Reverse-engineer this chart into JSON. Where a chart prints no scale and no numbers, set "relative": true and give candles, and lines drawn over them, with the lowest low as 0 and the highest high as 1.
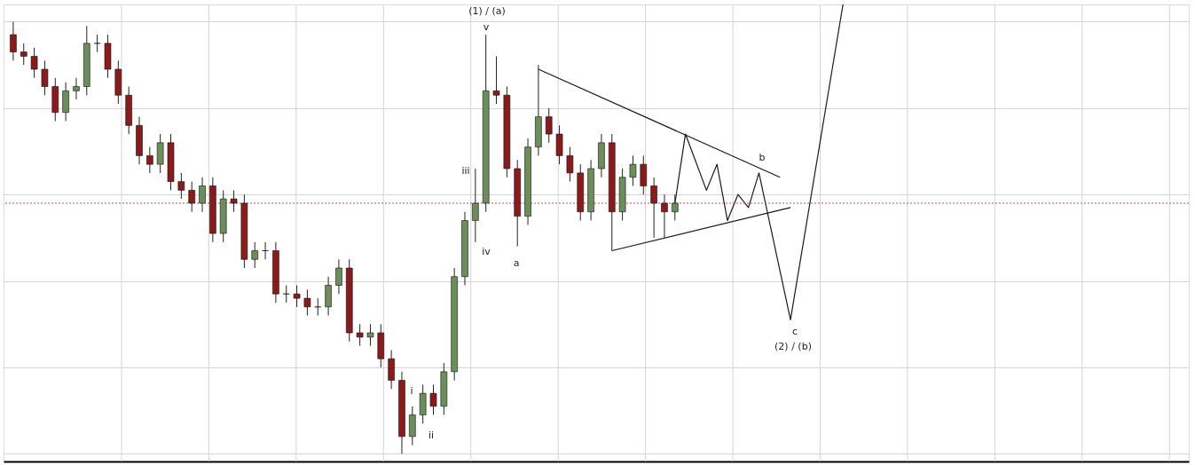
{
  "chart_data": {
    "type": "candlestick",
    "relative": true,
    "tick_labels": false,
    "grid": true,
    "categories": [
      null,
      null,
      null,
      null,
      null,
      null,
      null,
      null,
      null,
      null,
      null,
      null,
      null,
      null,
      null,
      null,
      null,
      null,
      null,
      null,
      null,
      null,
      null,
      null,
      null,
      null,
      null,
      null,
      null,
      null,
      null,
      null,
      null,
      null,
      null,
      null,
      null,
      null,
      null,
      null,
      null,
      null,
      null,
      null,
      null,
      null,
      null,
      null,
      null,
      null,
      null,
      null,
      null,
      null,
      null,
      null,
      null,
      null,
      null,
      null,
      null,
      null,
      null,
      null,
      null,
      null,
      null,
      null,
      null,
      null,
      null,
      null,
      null,
      null,
      null,
      null,
      null,
      null,
      null,
      null,
      null,
      null,
      null,
      null,
      null,
      null,
      null,
      null,
      null,
      null,
      null,
      null,
      null,
      null,
      null,
      null,
      null,
      null,
      null,
      null,
      null,
      null,
      null,
      null,
      null,
      null,
      null,
      null,
      null,
      null,
      null,
      null
    ],
    "ohlc": [
      [
        0.97,
        1.0,
        0.91,
        0.93
      ],
      [
        0.93,
        0.95,
        0.9,
        0.92
      ],
      [
        0.92,
        0.94,
        0.87,
        0.89
      ],
      [
        0.89,
        0.91,
        0.83,
        0.85
      ],
      [
        0.85,
        0.87,
        0.77,
        0.79
      ],
      [
        0.79,
        0.86,
        0.77,
        0.84
      ],
      [
        0.84,
        0.87,
        0.82,
        0.85
      ],
      [
        0.85,
        0.99,
        0.83,
        0.95
      ],
      [
        0.95,
        0.97,
        0.93,
        0.95
      ],
      [
        0.95,
        0.97,
        0.87,
        0.89
      ],
      [
        0.89,
        0.91,
        0.81,
        0.83
      ],
      [
        0.83,
        0.85,
        0.74,
        0.76
      ],
      [
        0.76,
        0.78,
        0.67,
        0.69
      ],
      [
        0.69,
        0.71,
        0.65,
        0.67
      ],
      [
        0.67,
        0.74,
        0.65,
        0.72
      ],
      [
        0.72,
        0.74,
        0.61,
        0.63
      ],
      [
        0.63,
        0.65,
        0.59,
        0.61
      ],
      [
        0.61,
        0.63,
        0.56,
        0.58
      ],
      [
        0.58,
        0.64,
        0.56,
        0.62
      ],
      [
        0.62,
        0.64,
        0.49,
        0.51
      ],
      [
        0.51,
        0.61,
        0.49,
        0.59
      ],
      [
        0.59,
        0.61,
        0.56,
        0.58
      ],
      [
        0.58,
        0.6,
        0.43,
        0.45
      ],
      [
        0.45,
        0.49,
        0.43,
        0.47
      ],
      [
        0.47,
        0.49,
        0.45,
        0.47
      ],
      [
        0.47,
        0.49,
        0.35,
        0.37
      ],
      [
        0.37,
        0.39,
        0.35,
        0.37
      ],
      [
        0.37,
        0.39,
        0.34,
        0.36
      ],
      [
        0.36,
        0.38,
        0.32,
        0.34
      ],
      [
        0.34,
        0.36,
        0.32,
        0.34
      ],
      [
        0.34,
        0.41,
        0.32,
        0.39
      ],
      [
        0.39,
        0.45,
        0.37,
        0.43
      ],
      [
        0.43,
        0.45,
        0.26,
        0.28
      ],
      [
        0.28,
        0.3,
        0.25,
        0.27
      ],
      [
        0.27,
        0.3,
        0.25,
        0.28
      ],
      [
        0.28,
        0.3,
        0.2,
        0.22
      ],
      [
        0.22,
        0.24,
        0.15,
        0.17
      ],
      [
        0.17,
        0.19,
        0.0,
        0.04
      ],
      [
        0.04,
        0.11,
        0.02,
        0.09
      ],
      [
        0.09,
        0.16,
        0.07,
        0.14
      ],
      [
        0.14,
        0.16,
        0.09,
        0.11
      ],
      [
        0.11,
        0.21,
        0.09,
        0.19
      ],
      [
        0.19,
        0.43,
        0.17,
        0.41
      ],
      [
        0.41,
        0.56,
        0.39,
        0.54
      ],
      [
        0.54,
        0.66,
        0.49,
        0.58
      ],
      [
        0.58,
        0.97,
        0.56,
        0.84
      ],
      [
        0.84,
        0.92,
        0.81,
        0.83
      ],
      [
        0.83,
        0.85,
        0.64,
        0.66
      ],
      [
        0.66,
        0.68,
        0.48,
        0.55
      ],
      [
        0.55,
        0.73,
        0.53,
        0.71
      ],
      [
        0.71,
        0.9,
        0.69,
        0.78
      ],
      [
        0.78,
        0.8,
        0.72,
        0.74
      ],
      [
        0.74,
        0.76,
        0.67,
        0.69
      ],
      [
        0.69,
        0.71,
        0.63,
        0.65
      ],
      [
        0.65,
        0.67,
        0.54,
        0.56
      ],
      [
        0.56,
        0.68,
        0.54,
        0.66
      ],
      [
        0.66,
        0.74,
        0.64,
        0.72
      ],
      [
        0.72,
        0.74,
        0.47,
        0.56
      ],
      [
        0.56,
        0.66,
        0.54,
        0.64
      ],
      [
        0.64,
        0.69,
        0.62,
        0.67
      ],
      [
        0.67,
        0.69,
        0.6,
        0.62
      ],
      [
        0.62,
        0.64,
        0.5,
        0.58
      ],
      [
        0.58,
        0.6,
        0.5,
        0.56
      ],
      [
        0.56,
        0.6,
        0.54,
        0.58
      ],
      null,
      null,
      null,
      null,
      null,
      null,
      null,
      null,
      null,
      null,
      null,
      null,
      null,
      null,
      null,
      null,
      null,
      null,
      null,
      null,
      null,
      null,
      null,
      null,
      null,
      null,
      null,
      null,
      null,
      null,
      null,
      null,
      null,
      null,
      null,
      null,
      null,
      null,
      null,
      null,
      null,
      null,
      null,
      null,
      null,
      null,
      null,
      null
    ],
    "series": [
      {
        "type": "line",
        "color": "#1a1a1a",
        "values": [
          null,
          null,
          null,
          null,
          null,
          null,
          null,
          null,
          null,
          null,
          null,
          null,
          null,
          null,
          null,
          null,
          null,
          null,
          null,
          null,
          null,
          null,
          null,
          null,
          null,
          null,
          null,
          null,
          null,
          null,
          null,
          null,
          null,
          null,
          null,
          null,
          null,
          null,
          null,
          null,
          null,
          null,
          null,
          null,
          null,
          null,
          null,
          null,
          null,
          null,
          0.89,
          null,
          null,
          null,
          null,
          null,
          null,
          null,
          null,
          null,
          null,
          null,
          null,
          null,
          null,
          null,
          null,
          null,
          null,
          null,
          null,
          null,
          null,
          0.64,
          null,
          null,
          null,
          null,
          null,
          null,
          null,
          null,
          null,
          null,
          null,
          null,
          null,
          null,
          null,
          null,
          null,
          null,
          null,
          null,
          null,
          null,
          null,
          null,
          null,
          null,
          null,
          null,
          null,
          null,
          null,
          null,
          null,
          null,
          null,
          null,
          null,
          null
        ]
      },
      {
        "type": "line",
        "color": "#1a1a1a",
        "values": [
          null,
          null,
          null,
          null,
          null,
          null,
          null,
          null,
          null,
          null,
          null,
          null,
          null,
          null,
          null,
          null,
          null,
          null,
          null,
          null,
          null,
          null,
          null,
          null,
          null,
          null,
          null,
          null,
          null,
          null,
          null,
          null,
          null,
          null,
          null,
          null,
          null,
          null,
          null,
          null,
          null,
          null,
          null,
          null,
          null,
          null,
          null,
          null,
          null,
          null,
          null,
          null,
          null,
          null,
          null,
          null,
          null,
          0.47,
          null,
          null,
          null,
          null,
          null,
          null,
          null,
          null,
          null,
          null,
          null,
          null,
          null,
          null,
          null,
          null,
          0.57,
          null,
          null,
          null,
          null,
          null,
          null,
          null,
          null,
          null,
          null,
          null,
          null,
          null,
          null,
          null,
          null,
          null,
          null,
          null,
          null,
          null,
          null,
          null,
          null,
          null,
          null,
          null,
          null,
          null,
          null,
          null,
          null,
          null,
          null,
          null,
          null,
          null
        ]
      },
      {
        "type": "line",
        "color": "#1a1a1a",
        "values": [
          null,
          null,
          null,
          null,
          null,
          null,
          null,
          null,
          null,
          null,
          null,
          null,
          null,
          null,
          null,
          null,
          null,
          null,
          null,
          null,
          null,
          null,
          null,
          null,
          null,
          null,
          null,
          null,
          null,
          null,
          null,
          null,
          null,
          null,
          null,
          null,
          null,
          null,
          null,
          null,
          null,
          null,
          null,
          null,
          null,
          null,
          null,
          null,
          null,
          null,
          null,
          null,
          null,
          null,
          null,
          null,
          null,
          null,
          null,
          null,
          null,
          null,
          null,
          0.58,
          0.74,
          null,
          0.61,
          0.67,
          0.54,
          0.6,
          0.57,
          0.65,
          null,
          null,
          0.31,
          null,
          null,
          null,
          null,
          1.04,
          null,
          null,
          null,
          null,
          null,
          null,
          null,
          null,
          null,
          null,
          null,
          null,
          null,
          null,
          null,
          null,
          null,
          null,
          null,
          null,
          null,
          null,
          null,
          null,
          null,
          null,
          null,
          null,
          null,
          null,
          null,
          null
        ]
      }
    ],
    "ref_lines": [
      {
        "axis": "y",
        "value": 0.58,
        "color": "#c0504d",
        "line_style": "dotted"
      }
    ],
    "annotations": [
      "(1) / (a)",
      "v",
      "iii",
      "iv",
      "i",
      "ii",
      "a",
      "b",
      "c",
      "(2) / (b)"
    ]
  }
}
